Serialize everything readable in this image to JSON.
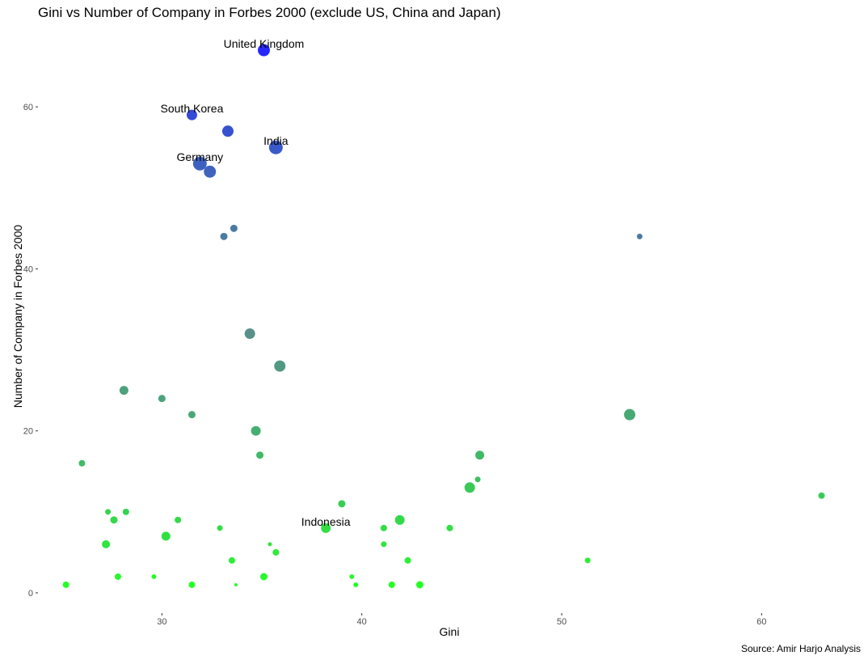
{
  "chart_data": {
    "type": "scatter",
    "title": "Gini vs Number of Company in Forbes 2000 (exclude US, China and Japan)",
    "xlabel": "Gini",
    "ylabel": "Number of Company in Forbes 2000",
    "caption": "Source: Amir Harjo Analysis",
    "xlim": [
      23.8,
      65
    ],
    "ylim": [
      -2.5,
      70
    ],
    "xticks": [
      30,
      40,
      50,
      60
    ],
    "yticks": [
      0,
      20,
      40,
      60
    ],
    "grid": false,
    "legend": "none",
    "color_low": "#00ff00",
    "color_high": "#0000ff",
    "points": [
      {
        "x": 35.1,
        "y": 67,
        "size": 15,
        "label": "United Kingdom"
      },
      {
        "x": 31.5,
        "y": 59,
        "size": 13,
        "label": "South Korea"
      },
      {
        "x": 33.3,
        "y": 57,
        "size": 14
      },
      {
        "x": 35.7,
        "y": 55,
        "size": 17,
        "label": "India"
      },
      {
        "x": 31.9,
        "y": 53,
        "size": 17,
        "label": "Germany"
      },
      {
        "x": 32.4,
        "y": 52,
        "size": 15
      },
      {
        "x": 33.6,
        "y": 45,
        "size": 9
      },
      {
        "x": 33.1,
        "y": 44,
        "size": 9
      },
      {
        "x": 53.9,
        "y": 44,
        "size": 7
      },
      {
        "x": 34.4,
        "y": 32,
        "size": 13
      },
      {
        "x": 35.9,
        "y": 28,
        "size": 14
      },
      {
        "x": 28.1,
        "y": 25,
        "size": 11
      },
      {
        "x": 30.0,
        "y": 24,
        "size": 9
      },
      {
        "x": 31.5,
        "y": 22,
        "size": 9
      },
      {
        "x": 53.4,
        "y": 22,
        "size": 14
      },
      {
        "x": 34.7,
        "y": 20,
        "size": 12
      },
      {
        "x": 45.9,
        "y": 17,
        "size": 11
      },
      {
        "x": 34.9,
        "y": 17,
        "size": 9
      },
      {
        "x": 26.0,
        "y": 16,
        "size": 8
      },
      {
        "x": 45.8,
        "y": 14,
        "size": 7
      },
      {
        "x": 45.4,
        "y": 13,
        "size": 13
      },
      {
        "x": 63.0,
        "y": 12,
        "size": 8
      },
      {
        "x": 39.0,
        "y": 11,
        "size": 9
      },
      {
        "x": 28.2,
        "y": 10,
        "size": 8
      },
      {
        "x": 27.3,
        "y": 10,
        "size": 7
      },
      {
        "x": 27.6,
        "y": 9,
        "size": 9
      },
      {
        "x": 30.8,
        "y": 9,
        "size": 8
      },
      {
        "x": 41.9,
        "y": 9,
        "size": 12
      },
      {
        "x": 38.2,
        "y": 8,
        "size": 12,
        "label": "Indonesia"
      },
      {
        "x": 32.9,
        "y": 8,
        "size": 7
      },
      {
        "x": 41.1,
        "y": 8,
        "size": 8
      },
      {
        "x": 44.4,
        "y": 8,
        "size": 8
      },
      {
        "x": 30.2,
        "y": 7,
        "size": 11
      },
      {
        "x": 27.2,
        "y": 6,
        "size": 10
      },
      {
        "x": 35.4,
        "y": 6,
        "size": 5
      },
      {
        "x": 41.1,
        "y": 6,
        "size": 7
      },
      {
        "x": 35.7,
        "y": 5,
        "size": 8
      },
      {
        "x": 33.5,
        "y": 4,
        "size": 8
      },
      {
        "x": 42.3,
        "y": 4,
        "size": 8
      },
      {
        "x": 51.3,
        "y": 4,
        "size": 7
      },
      {
        "x": 27.8,
        "y": 2,
        "size": 8
      },
      {
        "x": 29.6,
        "y": 2,
        "size": 6
      },
      {
        "x": 35.1,
        "y": 2,
        "size": 9
      },
      {
        "x": 39.5,
        "y": 2,
        "size": 6
      },
      {
        "x": 25.2,
        "y": 1,
        "size": 8
      },
      {
        "x": 31.5,
        "y": 1,
        "size": 8
      },
      {
        "x": 33.7,
        "y": 1,
        "size": 4
      },
      {
        "x": 39.7,
        "y": 1,
        "size": 6
      },
      {
        "x": 41.5,
        "y": 1,
        "size": 8
      },
      {
        "x": 42.9,
        "y": 1,
        "size": 9
      }
    ]
  }
}
